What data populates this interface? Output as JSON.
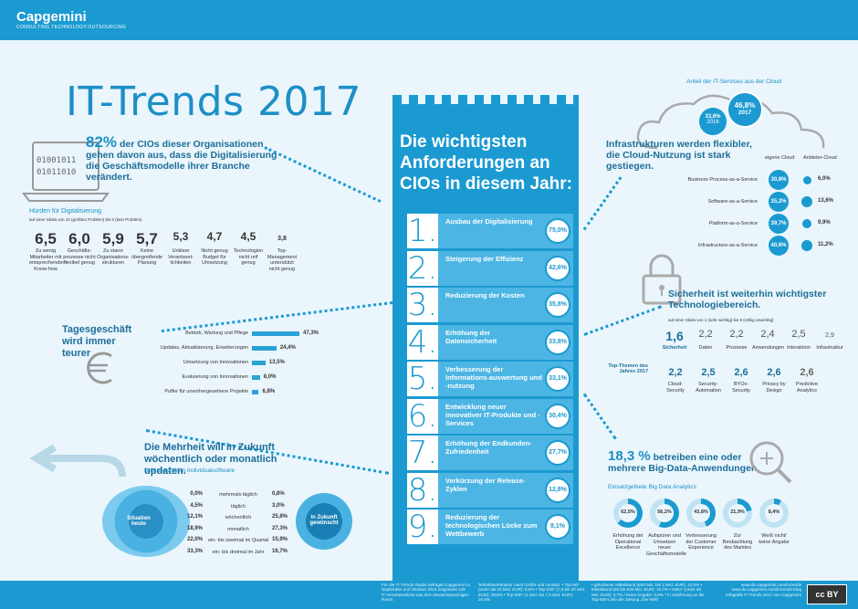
{
  "brand": {
    "name": "Capgemini",
    "tagline": "CONSULTING.TECHNOLOGY.OUTSOURCING"
  },
  "title": "IT-Trends 2017",
  "tower": {
    "heading": "Die wichtigsten Anforderungen an CIOs in diesem Jahr:",
    "rows": [
      {
        "num": "1.",
        "label": "Ausbau der Digitalisierung",
        "pct": "75,0%"
      },
      {
        "num": "2.",
        "label": "Steigerung der Effizienz",
        "pct": "42,6%"
      },
      {
        "num": "3.",
        "label": "Reduzierung der Kosten",
        "pct": "35,8%"
      },
      {
        "num": "4.",
        "label": "Erhöhung der Datensicherheit",
        "pct": "33,8%"
      },
      {
        "num": "5.",
        "label": "Verbesserung der Informations-auswertung und -nutzung",
        "pct": "33,1%"
      },
      {
        "num": "6.",
        "label": "Entwicklung neuer innovativer IT-Produkte und -Services",
        "pct": "30,4%"
      },
      {
        "num": "7.",
        "label": "Erhöhung der Endkunden-Zufriedenheit",
        "pct": "27,7%"
      },
      {
        "num": "8.",
        "label": "Verkürzung der Release-Zyklen",
        "pct": "12,8%"
      },
      {
        "num": "9.",
        "label": "Reduzierung der technologischen Lücke zum Wettbewerb",
        "pct": "8,1%"
      }
    ]
  },
  "digital": {
    "code1": "01001011",
    "code2": "01011010",
    "headline_pct": "82%",
    "headline_text": "der CIOs dieser Organisationen gehen davon aus, dass die Digitalisierung die Geschäftsmodelle ihrer Branche verändert.",
    "hurdles_title": "Hürden für Digitalisierung",
    "hurdles_scale": "auf einer Skala von 10 (größtes Problem) bis 0 (kein Problem)",
    "hurdles": [
      {
        "value": "6,5",
        "label": "Zu wenig Mitarbeiter mit entsprechendem Know-how"
      },
      {
        "value": "6,0",
        "label": "Geschäfts-prozesse nicht flexibel genug"
      },
      {
        "value": "5,9",
        "label": "Zu starre Organisations-strukturen"
      },
      {
        "value": "5,7",
        "label": "Keine übergreifende Planung"
      },
      {
        "value": "5,3",
        "label": "Unklare Verantwort-lichkeiten"
      },
      {
        "value": "4,7",
        "label": "Nicht genug Budget für Umsetzung"
      },
      {
        "value": "4,5",
        "label": "Technologien nicht reif genug"
      },
      {
        "value": "3,8",
        "label": "Top-Management unterstützt nicht genug"
      }
    ]
  },
  "daily": {
    "title": "Tagesgeschäft wird immer teurer",
    "bars": [
      {
        "label": "Betrieb, Wartung und Pflege",
        "value": 47.3,
        "text": "47,3%"
      },
      {
        "label": "Updates, Aktualisierung, Erweiterungen",
        "value": 24.4,
        "text": "24,4%"
      },
      {
        "label": "Umsetzung von Innovationen",
        "value": 13.5,
        "text": "13,5%"
      },
      {
        "label": "Evaluierung von Innovationen",
        "value": 8.0,
        "text": "8,0%"
      },
      {
        "label": "Puffer für unvorhergesehene Projekte",
        "value": 6.8,
        "text": "6,8%"
      }
    ]
  },
  "release": {
    "title": "Die Mehrheit will in Zukunft wöchentlich oder monatlich updaten.",
    "subtitle": "Release-Zyklen Individualsoftware",
    "left_label": "Situation heute",
    "right_label": "in Zukunft gewünscht",
    "rows": [
      {
        "today": "0,0%",
        "label": "mehrmals täglich",
        "future": "0,8%"
      },
      {
        "today": "4,5%",
        "label": "täglich",
        "future": "3,0%"
      },
      {
        "today": "12,1%",
        "label": "wöchentlich",
        "future": "25,8%"
      },
      {
        "today": "18,9%",
        "label": "monatlich",
        "future": "27,3%"
      },
      {
        "today": "22,0%",
        "label": "ein- bis zweimal im Quartal",
        "future": "15,9%"
      },
      {
        "today": "33,3%",
        "label": "ein- bis dreimal im Jahr",
        "future": "16,7%"
      }
    ]
  },
  "cloud": {
    "share_title": "Anteil der IT-Services aus der Cloud",
    "y2016": "33,6%",
    "y2016_label": "2016",
    "y2017": "46,8%",
    "y2017_label": "2017",
    "headline": "Infrastrukturen werden flexibler, die Cloud-Nutzung ist stark gestiegen.",
    "col_own": "eigene Cloud",
    "col_provider": "Anbieter-Cloud",
    "rows": [
      {
        "label": "Business Process-as-a-Service",
        "own": "30,8%",
        "provider": "6,0%",
        "pv": 6.0
      },
      {
        "label": "Software-as-a-Service",
        "own": "35,2%",
        "provider": "13,6%",
        "pv": 13.6
      },
      {
        "label": "Platform-as-a-Service",
        "own": "39,7%",
        "provider": "9,9%",
        "pv": 9.9
      },
      {
        "label": "Infrastructure-as-a-Service",
        "own": "40,6%",
        "provider": "11,2%",
        "pv": 11.2
      }
    ]
  },
  "security": {
    "headline": "Sicherheit ist weiterhin wichtigster Technologiebereich.",
    "scale": "auf einer Skala von 1 (sehr wichtig) bis 6 (völlig unwichtig)",
    "top_label": "Top-Themen des Jahres 2017",
    "areas": [
      {
        "value": "1,6",
        "label": "Sicherheit"
      },
      {
        "value": "2,2",
        "label": "Daten"
      },
      {
        "value": "2,2",
        "label": "Prozesse"
      },
      {
        "value": "2,4",
        "label": "Anwendungen"
      },
      {
        "value": "2,5",
        "label": "Interaktion"
      },
      {
        "value": "2,9",
        "label": "Infrastruktur"
      }
    ],
    "topics": [
      {
        "value": "2,2",
        "label": "Cloud-Security"
      },
      {
        "value": "2,5",
        "label": "Security-Automation"
      },
      {
        "value": "2,6",
        "label": "BYOx-Security"
      },
      {
        "value": "2,6",
        "label": "Privacy by Design"
      },
      {
        "value": "2,6",
        "label": "Predictive Analytics"
      }
    ]
  },
  "bigdata": {
    "pct": "18,3 %",
    "headline": "betreiben eine oder mehrere Big-Data-Anwendungen.",
    "sub": "Einsatzgebiete Big Data Analytics",
    "items": [
      {
        "value": 62.5,
        "text": "62,5%",
        "label": "Erhöhung der Operational Excellence"
      },
      {
        "value": 56.2,
        "text": "56,2%",
        "label": "Aufspüren und Umsetzen neuer Geschäftsmodelle"
      },
      {
        "value": 43.8,
        "text": "43,8%",
        "label": "Verbesserung der Customer Experience"
      },
      {
        "value": 21.9,
        "text": "21,9%",
        "label": "Zur Beobachtung des Marktes"
      },
      {
        "value": 8.4,
        "text": "8,4%",
        "label": "Weiß nicht/ keine Angabe"
      }
    ]
  },
  "footer": {
    "col1": "Für die IT-Trends-Studie befragte Capgemini im September und Oktober 2016 insgesamt 149 IT-Verantwortliche aus dem deutschsprachigen Raum.",
    "col2": "Teilnehmerstruktur nach Größe und Umsatz: • Top-50* (mehr als 20 Mrd. EUR): 8,6% • Top-100* (7,5 bis 20 Mrd. EUR): 29,8% • Top-500* (1 Mrd. bis 7,5 Mrd. EUR): 34,5%",
    "col3": "• gehobener Mittelstand (500 Mio. bis 1 Mrd. EUR): 10,4% • Mittelstand (50 bis 500 Mio. EUR): 16,7% • KMU* (unter 50 Mio. EUR): 0,7% / keine Angabe: 3,8% * in Anlehnung an die Top-500-Liste der Zeitung „Die Welt“",
    "links": "www.de.capgemini.com/it-trends www.de.capgemini.com/it-trends-blog Infografik IT-Trends 2017 von Capgemini",
    "license": "cc BY"
  }
}
